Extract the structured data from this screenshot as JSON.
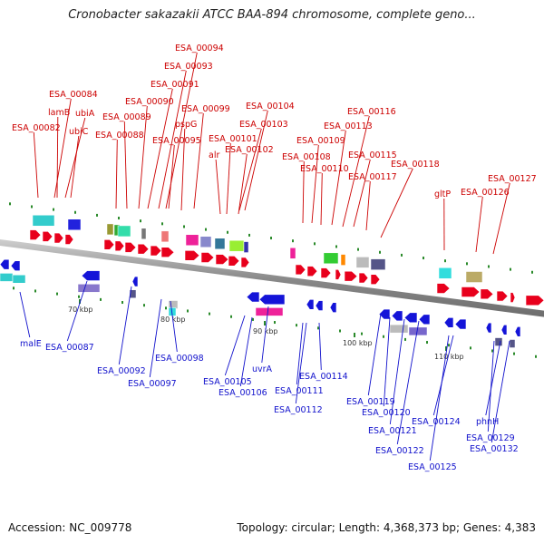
{
  "title": "Cronobacter sakazakii ATCC BAA-894 chromosome, complete geno...",
  "footer": {
    "accession": "Accession: NC_009778",
    "summary": "Topology: circular; Length: 4,368,373 bp; Genes: 4,383"
  },
  "colors": {
    "forward": "#e8001c",
    "reverse": "#1414d8",
    "label_forward": "#cc0000",
    "label_reverse": "#1111cc",
    "backbone": "#8a8a8a"
  },
  "tick_labels": [
    "70 kbp",
    "80 kbp",
    "90 kbp",
    "100 kbp",
    "110 kbp"
  ],
  "forward_labels": [
    "ESA_00094",
    "ESA_00093",
    "ESA_00091",
    "ESA_00084",
    "ESA_00090",
    "lamB",
    "ubiA",
    "ESA_00089",
    "ESA_00099",
    "ESA_00104",
    "ESA_00116",
    "ESA_00082",
    "ubiC",
    "ESA_00088",
    "pspG",
    "ESA_00103",
    "ESA_00113",
    "ESA_00095",
    "ESA_00101",
    "ESA_00109",
    "alr",
    "ESA_00102",
    "ESA_00108",
    "ESA_00115",
    "ESA_00118",
    "ESA_00110",
    "ESA_00117",
    "ESA_00127",
    "gltP",
    "ESA_00126"
  ],
  "reverse_labels": [
    "malE",
    "ESA_00087",
    "ESA_00092",
    "ESA_00097",
    "ESA_00098",
    "ESA_00105",
    "ESA_00106",
    "uvrA",
    "ESA_00111",
    "ESA_00112",
    "ESA_00114",
    "ESA_00119",
    "ESA_00120",
    "ESA_00121",
    "ESA_00122",
    "ESA_00124",
    "ESA_00125",
    "phnH",
    "ESA_00129",
    "ESA_00132"
  ]
}
